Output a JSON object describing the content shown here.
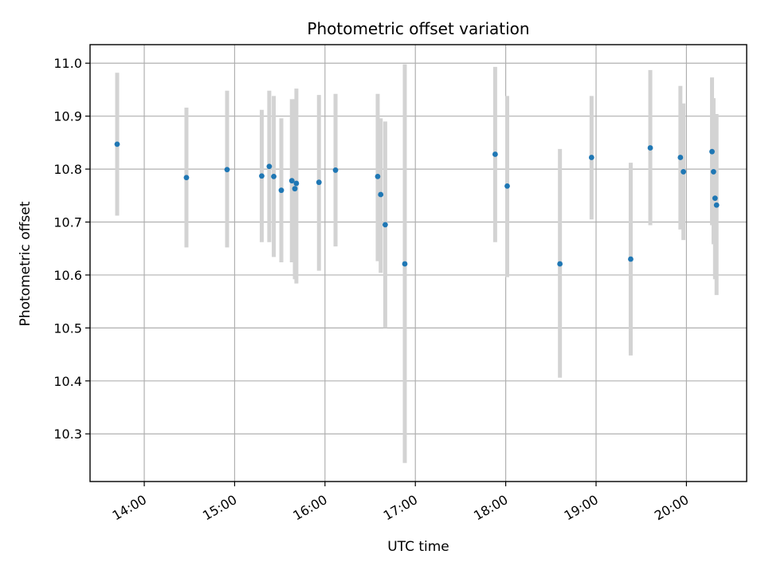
{
  "chart_data": {
    "type": "scatter",
    "title": "Photometric offset variation",
    "xlabel": "UTC time",
    "ylabel": "Photometric offset",
    "xlim": [
      "13:24",
      "20:40"
    ],
    "ylim": [
      10.21,
      11.035
    ],
    "x_ticks": [
      "14:00",
      "15:00",
      "16:00",
      "17:00",
      "18:00",
      "19:00",
      "20:00"
    ],
    "y_ticks": [
      10.3,
      10.4,
      10.5,
      10.6,
      10.7,
      10.8,
      10.9,
      11.0
    ],
    "y_tick_labels": [
      "10.3",
      "10.4",
      "10.5",
      "10.6",
      "10.7",
      "10.8",
      "10.9",
      "11.0"
    ],
    "grid": true,
    "marker_color": "#1f77b4",
    "errorbar_color": "#d3d3d3",
    "series": [
      {
        "points": [
          {
            "x": "13:42",
            "y": 10.847,
            "ylow": 10.712,
            "yhigh": 10.982
          },
          {
            "x": "14:28",
            "y": 10.784,
            "ylow": 10.652,
            "yhigh": 10.916
          },
          {
            "x": "14:55",
            "y": 10.799,
            "ylow": 10.652,
            "yhigh": 10.948
          },
          {
            "x": "15:18",
            "y": 10.787,
            "ylow": 10.662,
            "yhigh": 10.912
          },
          {
            "x": "15:23",
            "y": 10.805,
            "ylow": 10.662,
            "yhigh": 10.948
          },
          {
            "x": "15:26",
            "y": 10.786,
            "ylow": 10.634,
            "yhigh": 10.938
          },
          {
            "x": "15:31",
            "y": 10.76,
            "ylow": 10.624,
            "yhigh": 10.896
          },
          {
            "x": "15:38",
            "y": 10.778,
            "ylow": 10.624,
            "yhigh": 10.932
          },
          {
            "x": "15:40",
            "y": 10.763,
            "ylow": 10.592,
            "yhigh": 10.932
          },
          {
            "x": "15:41",
            "y": 10.773,
            "ylow": 10.584,
            "yhigh": 10.952
          },
          {
            "x": "15:56",
            "y": 10.775,
            "ylow": 10.608,
            "yhigh": 10.94
          },
          {
            "x": "16:07",
            "y": 10.798,
            "ylow": 10.654,
            "yhigh": 10.942
          },
          {
            "x": "16:35",
            "y": 10.786,
            "ylow": 10.626,
            "yhigh": 10.942
          },
          {
            "x": "16:37",
            "y": 10.752,
            "ylow": 10.604,
            "yhigh": 10.896
          },
          {
            "x": "16:40",
            "y": 10.695,
            "ylow": 10.5,
            "yhigh": 10.89
          },
          {
            "x": "16:53",
            "y": 10.621,
            "ylow": 10.245,
            "yhigh": 10.998
          },
          {
            "x": "17:53",
            "y": 10.828,
            "ylow": 10.662,
            "yhigh": 10.993
          },
          {
            "x": "18:01",
            "y": 10.768,
            "ylow": 10.596,
            "yhigh": 10.938
          },
          {
            "x": "18:36",
            "y": 10.621,
            "ylow": 10.406,
            "yhigh": 10.838
          },
          {
            "x": "18:57",
            "y": 10.822,
            "ylow": 10.705,
            "yhigh": 10.938
          },
          {
            "x": "19:23",
            "y": 10.63,
            "ylow": 10.448,
            "yhigh": 10.812
          },
          {
            "x": "19:36",
            "y": 10.84,
            "ylow": 10.694,
            "yhigh": 10.987
          },
          {
            "x": "19:56",
            "y": 10.822,
            "ylow": 10.686,
            "yhigh": 10.957
          },
          {
            "x": "19:58",
            "y": 10.795,
            "ylow": 10.666,
            "yhigh": 10.924
          },
          {
            "x": "20:17",
            "y": 10.833,
            "ylow": 10.694,
            "yhigh": 10.973
          },
          {
            "x": "20:18",
            "y": 10.795,
            "ylow": 10.658,
            "yhigh": 10.934
          },
          {
            "x": "20:19",
            "y": 10.745,
            "ylow": 10.592,
            "yhigh": 10.898
          },
          {
            "x": "20:20",
            "y": 10.732,
            "ylow": 10.562,
            "yhigh": 10.904
          }
        ]
      }
    ]
  }
}
